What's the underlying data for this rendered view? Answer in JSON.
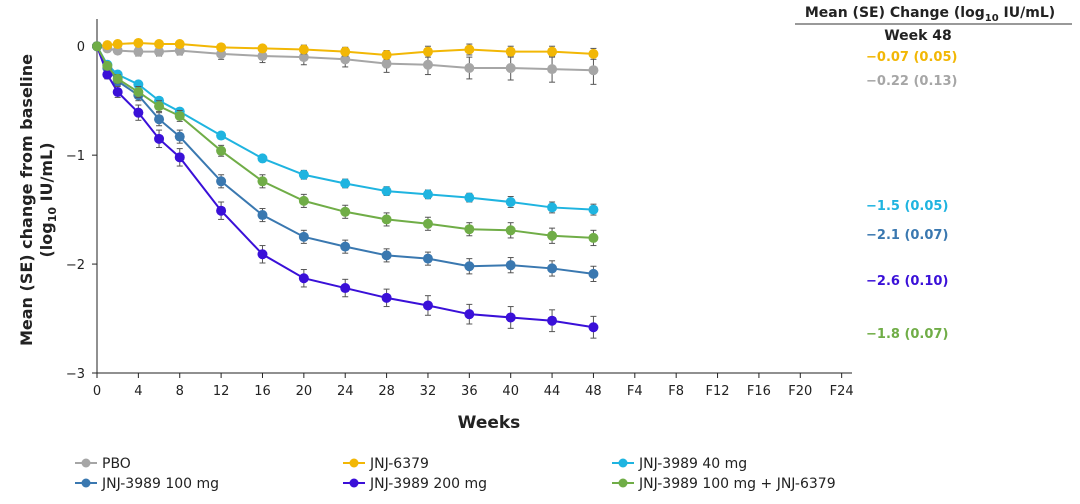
{
  "chart_data": {
    "type": "line",
    "xlabel": "Weeks",
    "ylabel": {
      "line1": "Mean (SE) change from baseline",
      "line2": [
        "(log",
        "10",
        " IU/mL)"
      ]
    },
    "header": {
      "parts": [
        "Mean (SE) Change (log",
        "10",
        " IU/mL)"
      ],
      "subtitle": "Week 48"
    },
    "x": [
      0,
      1,
      2,
      4,
      6,
      8,
      12,
      16,
      20,
      24,
      28,
      32,
      36,
      40,
      44,
      48
    ],
    "xlim": [
      0,
      73
    ],
    "xticks": [
      0,
      4,
      8,
      12,
      16,
      20,
      24,
      28,
      32,
      36,
      40,
      44,
      48,
      {
        "value": 52,
        "label": "F4"
      },
      {
        "value": 56,
        "label": "F8"
      },
      {
        "value": 60,
        "label": "F12"
      },
      {
        "value": 64,
        "label": "F16"
      },
      {
        "value": 68,
        "label": "F20"
      },
      {
        "value": 72,
        "label": "F24"
      }
    ],
    "ylim": [
      -3,
      0.25
    ],
    "yticks": [
      {
        "value": -3,
        "label": "−3"
      },
      {
        "value": -2,
        "label": "−2"
      },
      {
        "value": -1,
        "label": "−1"
      },
      0
    ],
    "series": [
      {
        "name": "PBO",
        "color": "#a6a6a6",
        "values": [
          0,
          -0.02,
          -0.04,
          -0.05,
          -0.05,
          -0.04,
          -0.07,
          -0.09,
          -0.1,
          -0.12,
          -0.16,
          -0.17,
          -0.2,
          -0.2,
          -0.21,
          -0.22
        ],
        "errors": [
          0,
          0.02,
          0.03,
          0.04,
          0.04,
          0.04,
          0.05,
          0.06,
          0.07,
          0.07,
          0.08,
          0.09,
          0.1,
          0.11,
          0.12,
          0.13
        ],
        "week48_label": "−0.22 (0.13)"
      },
      {
        "name": "JNJ-6379",
        "color": "#f2b705",
        "values": [
          0,
          0.01,
          0.02,
          0.03,
          0.02,
          0.02,
          -0.01,
          -0.02,
          -0.03,
          -0.05,
          -0.08,
          -0.05,
          -0.03,
          -0.05,
          -0.05,
          -0.07
        ],
        "errors": [
          0,
          0.01,
          0.02,
          0.02,
          0.02,
          0.02,
          0.03,
          0.03,
          0.04,
          0.04,
          0.04,
          0.05,
          0.05,
          0.05,
          0.05,
          0.05
        ],
        "week48_label": "−0.07 (0.05)"
      },
      {
        "name": "JNJ-3989 40 mg",
        "color": "#1fb4e0",
        "values": [
          0,
          -0.17,
          -0.26,
          -0.35,
          -0.5,
          -0.6,
          -0.82,
          -1.03,
          -1.18,
          -1.26,
          -1.33,
          -1.36,
          -1.39,
          -1.43,
          -1.48,
          -1.5
        ],
        "errors": [
          0,
          0.02,
          0.02,
          0.03,
          0.03,
          0.03,
          0.03,
          0.03,
          0.04,
          0.04,
          0.04,
          0.04,
          0.04,
          0.05,
          0.05,
          0.05
        ],
        "week48_label": "−1.5 (0.05)"
      },
      {
        "name": "JNJ-3989 100 mg",
        "color": "#3a78b0",
        "values": [
          0,
          -0.2,
          -0.32,
          -0.45,
          -0.67,
          -0.83,
          -1.24,
          -1.55,
          -1.75,
          -1.84,
          -1.92,
          -1.95,
          -2.02,
          -2.01,
          -2.04,
          -2.09
        ],
        "errors": [
          0,
          0.03,
          0.04,
          0.05,
          0.06,
          0.06,
          0.06,
          0.06,
          0.06,
          0.06,
          0.06,
          0.06,
          0.07,
          0.07,
          0.07,
          0.07
        ],
        "week48_label": "−2.1 (0.07)"
      },
      {
        "name": "JNJ-3989 200 mg",
        "color": "#3a10d8",
        "values": [
          0,
          -0.26,
          -0.42,
          -0.61,
          -0.85,
          -1.02,
          -1.51,
          -1.91,
          -2.13,
          -2.22,
          -2.31,
          -2.38,
          -2.46,
          -2.49,
          -2.52,
          -2.58
        ],
        "errors": [
          0,
          0.04,
          0.05,
          0.07,
          0.08,
          0.08,
          0.08,
          0.08,
          0.08,
          0.08,
          0.08,
          0.09,
          0.09,
          0.1,
          0.1,
          0.1
        ],
        "week48_label": "−2.6 (0.10)"
      },
      {
        "name": "JNJ-3989 100 mg + JNJ-6379",
        "color": "#70ad47",
        "values": [
          0,
          -0.18,
          -0.3,
          -0.42,
          -0.55,
          -0.64,
          -0.96,
          -1.24,
          -1.42,
          -1.52,
          -1.59,
          -1.63,
          -1.68,
          -1.69,
          -1.74,
          -1.76
        ],
        "errors": [
          0,
          0.03,
          0.04,
          0.05,
          0.05,
          0.05,
          0.05,
          0.06,
          0.06,
          0.06,
          0.06,
          0.06,
          0.06,
          0.07,
          0.07,
          0.07
        ],
        "week48_label": "−1.8 (0.07)"
      }
    ]
  }
}
